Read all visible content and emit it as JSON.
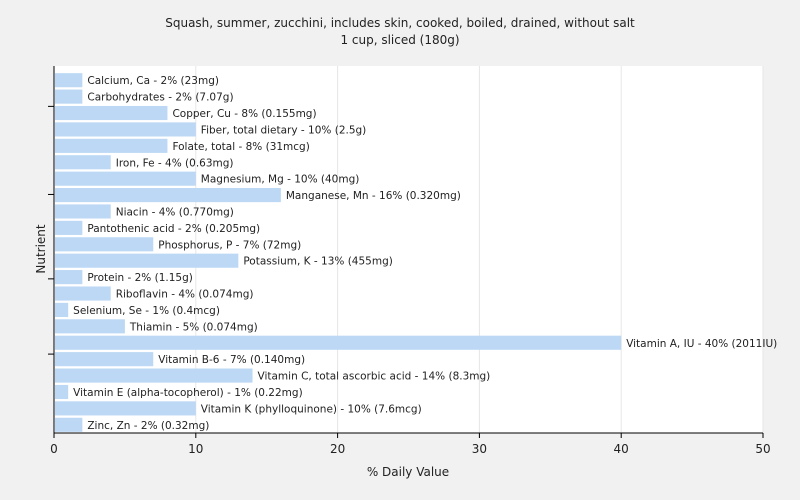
{
  "chart_data": {
    "type": "bar",
    "orientation": "horizontal",
    "title": "Squash, summer, zucchini, includes skin, cooked, boiled, drained, without salt",
    "subtitle": "1 cup, sliced (180g)",
    "xlabel": "% Daily Value",
    "ylabel": "Nutrient",
    "xlim": [
      0,
      50
    ],
    "xticks": [
      "0",
      "10",
      "20",
      "30",
      "40",
      "50"
    ],
    "grid": true,
    "bar_color": "#bcd8f5",
    "categories": [
      "Calcium, Ca",
      "Carbohydrates",
      "Copper, Cu",
      "Fiber, total dietary",
      "Folate, total",
      "Iron, Fe",
      "Magnesium, Mg",
      "Manganese, Mn",
      "Niacin",
      "Pantothenic acid",
      "Phosphorus, P",
      "Potassium, K",
      "Protein",
      "Riboflavin",
      "Selenium, Se",
      "Thiamin",
      "Vitamin A, IU",
      "Vitamin B-6",
      "Vitamin C, total ascorbic acid",
      "Vitamin E (alpha-tocopherol)",
      "Vitamin K (phylloquinone)",
      "Zinc, Zn"
    ],
    "values": [
      2,
      2,
      8,
      10,
      8,
      4,
      10,
      16,
      4,
      2,
      7,
      13,
      2,
      4,
      1,
      5,
      40,
      7,
      14,
      1,
      10,
      2
    ],
    "labels": [
      "Calcium, Ca - 2% (23mg)",
      "Carbohydrates - 2% (7.07g)",
      "Copper, Cu - 8% (0.155mg)",
      "Fiber, total dietary - 10% (2.5g)",
      "Folate, total - 8% (31mcg)",
      "Iron, Fe - 4% (0.63mg)",
      "Magnesium, Mg - 10% (40mg)",
      "Manganese, Mn - 16% (0.320mg)",
      "Niacin - 4% (0.770mg)",
      "Pantothenic acid - 2% (0.205mg)",
      "Phosphorus, P - 7% (72mg)",
      "Potassium, K - 13% (455mg)",
      "Protein - 2% (1.15g)",
      "Riboflavin - 4% (0.074mg)",
      "Selenium, Se - 1% (0.4mcg)",
      "Thiamin - 5% (0.074mg)",
      "Vitamin A, IU - 40% (2011IU)",
      "Vitamin B-6 - 7% (0.140mg)",
      "Vitamin C, total ascorbic acid - 14% (8.3mg)",
      "Vitamin E (alpha-tocopherol) - 1% (0.22mg)",
      "Vitamin K (phylloquinone) - 10% (7.6mcg)",
      "Zinc, Zn - 2% (0.32mg)"
    ]
  }
}
